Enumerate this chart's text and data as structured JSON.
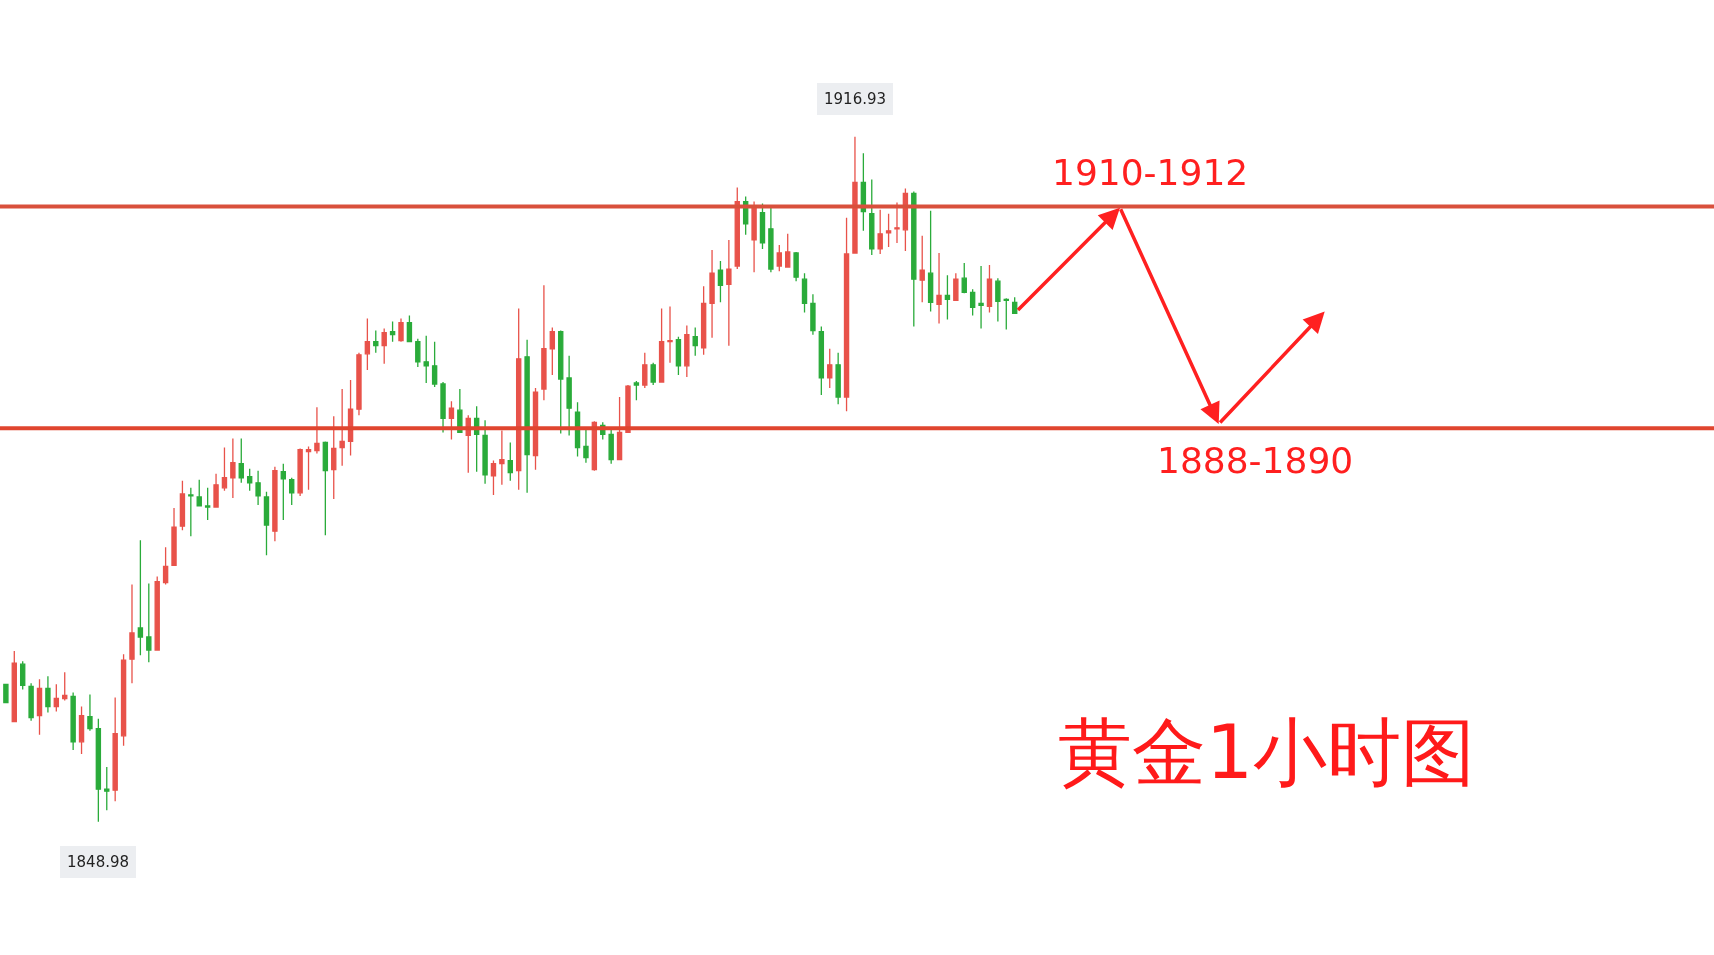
{
  "chart_data": {
    "type": "candlestick",
    "title": "黄金1小时图",
    "ylim": [
      1835.75,
      1930.5
    ],
    "ohlc": [
      [
        1862.6,
        1862.6,
        1860.8,
        1860.8
      ],
      [
        1858.9,
        1865.9,
        1858.9,
        1864.7
      ],
      [
        1864.6,
        1864.9,
        1862.1,
        1862.5
      ],
      [
        1862.4,
        1862.7,
        1859.0,
        1859.3
      ],
      [
        1859.5,
        1863.1,
        1857.6,
        1862.2
      ],
      [
        1862.2,
        1863.4,
        1859.8,
        1860.4
      ],
      [
        1860.4,
        1862.6,
        1859.9,
        1861.2
      ],
      [
        1861.2,
        1863.8,
        1861.0,
        1861.5
      ],
      [
        1861.4,
        1861.8,
        1856.1,
        1856.9
      ],
      [
        1856.9,
        1860.4,
        1855.7,
        1859.5
      ],
      [
        1859.4,
        1861.6,
        1858.0,
        1858.2
      ],
      [
        1858.2,
        1859.2,
        1848.98,
        1852.2
      ],
      [
        1852.2,
        1854.4,
        1850.1,
        1852.0
      ],
      [
        1852.1,
        1861.3,
        1851.0,
        1857.7
      ],
      [
        1857.5,
        1865.6,
        1856.5,
        1865.0
      ],
      [
        1865.1,
        1872.5,
        1862.7,
        1867.7
      ],
      [
        1868.2,
        1876.9,
        1865.5,
        1867.3
      ],
      [
        1867.3,
        1872.6,
        1864.8,
        1866.0
      ],
      [
        1866.0,
        1873.3,
        1866.0,
        1872.8
      ],
      [
        1872.7,
        1876.2,
        1872.5,
        1874.3
      ],
      [
        1874.4,
        1880.1,
        1874.4,
        1878.2
      ],
      [
        1878.3,
        1882.8,
        1877.9,
        1881.5
      ],
      [
        1881.4,
        1882.1,
        1877.3,
        1881.3
      ],
      [
        1881.2,
        1882.9,
        1880.3,
        1880.3
      ],
      [
        1880.3,
        1882.1,
        1878.9,
        1880.2
      ],
      [
        1880.2,
        1883.5,
        1880.2,
        1882.4
      ],
      [
        1882.1,
        1886.1,
        1881.8,
        1883.1
      ],
      [
        1883.1,
        1887.0,
        1881.1,
        1884.6
      ],
      [
        1884.5,
        1887.0,
        1882.6,
        1883.1
      ],
      [
        1883.2,
        1884.0,
        1881.8,
        1882.6
      ],
      [
        1882.6,
        1883.8,
        1880.4,
        1881.3
      ],
      [
        1881.2,
        1881.7,
        1875.4,
        1878.4
      ],
      [
        1877.8,
        1884.2,
        1876.8,
        1883.8
      ],
      [
        1883.7,
        1884.5,
        1878.9,
        1883.0
      ],
      [
        1882.9,
        1883.1,
        1880.4,
        1881.6
      ],
      [
        1881.6,
        1886.0,
        1881.3,
        1885.9
      ],
      [
        1885.7,
        1886.2,
        1881.9,
        1885.9
      ],
      [
        1885.8,
        1890.1,
        1885.5,
        1886.5
      ],
      [
        1886.6,
        1886.7,
        1877.4,
        1883.8
      ],
      [
        1883.9,
        1889.2,
        1881.0,
        1886.0
      ],
      [
        1886.1,
        1891.9,
        1884.3,
        1886.7
      ],
      [
        1886.7,
        1892.8,
        1885.3,
        1889.9
      ],
      [
        1889.9,
        1895.5,
        1889.3,
        1895.3
      ],
      [
        1895.4,
        1898.9,
        1893.8,
        1896.6
      ],
      [
        1896.6,
        1897.7,
        1895.5,
        1896.2
      ],
      [
        1896.2,
        1897.9,
        1894.4,
        1897.5
      ],
      [
        1897.6,
        1898.6,
        1896.6,
        1897.3
      ],
      [
        1896.7,
        1898.9,
        1896.6,
        1898.5
      ],
      [
        1898.5,
        1899.2,
        1896.6,
        1896.6
      ],
      [
        1896.6,
        1896.9,
        1894.1,
        1894.6
      ],
      [
        1894.6,
        1897.2,
        1892.5,
        1894.2
      ],
      [
        1894.2,
        1896.6,
        1892.1,
        1892.4
      ],
      [
        1892.4,
        1892.6,
        1887.6,
        1889.0
      ],
      [
        1889.0,
        1890.7,
        1886.9,
        1890.0
      ],
      [
        1889.8,
        1891.9,
        1887.6,
        1887.6
      ],
      [
        1887.3,
        1889.3,
        1883.6,
        1889.0
      ],
      [
        1889.0,
        1890.2,
        1883.7,
        1887.4
      ],
      [
        1887.3,
        1888.8,
        1882.5,
        1883.4
      ],
      [
        1883.3,
        1884.8,
        1881.4,
        1884.5
      ],
      [
        1884.5,
        1887.8,
        1882.4,
        1884.9
      ],
      [
        1884.8,
        1886.6,
        1882.8,
        1883.6
      ],
      [
        1883.8,
        1899.9,
        1881.9,
        1894.9
      ],
      [
        1895.1,
        1896.8,
        1881.6,
        1885.4
      ],
      [
        1885.3,
        1892.0,
        1883.9,
        1891.6
      ],
      [
        1891.9,
        1902.2,
        1890.8,
        1895.9
      ],
      [
        1895.9,
        1898.0,
        1893.3,
        1897.6
      ],
      [
        1897.6,
        1897.7,
        1887.5,
        1892.9
      ],
      [
        1893.0,
        1895.2,
        1887.3,
        1890.0
      ],
      [
        1889.6,
        1890.6,
        1885.2,
        1886.1
      ],
      [
        1886.2,
        1887.9,
        1884.6,
        1885.1
      ],
      [
        1883.9,
        1888.7,
        1883.8,
        1888.6
      ],
      [
        1888.3,
        1888.6,
        1886.9,
        1887.4
      ],
      [
        1887.4,
        1888.0,
        1884.5,
        1884.9
      ],
      [
        1884.9,
        1891.1,
        1884.9,
        1887.6
      ],
      [
        1887.6,
        1892.3,
        1887.6,
        1892.2
      ],
      [
        1892.5,
        1892.7,
        1890.8,
        1892.3
      ],
      [
        1892.3,
        1895.5,
        1892.0,
        1894.3
      ],
      [
        1894.3,
        1894.5,
        1892.3,
        1892.6
      ],
      [
        1892.6,
        1899.9,
        1892.6,
        1896.6
      ],
      [
        1896.6,
        1900.1,
        1894.5,
        1896.7
      ],
      [
        1896.8,
        1897.1,
        1893.3,
        1894.2
      ],
      [
        1894.2,
        1898.2,
        1893.1,
        1897.3
      ],
      [
        1897.1,
        1898.0,
        1895.2,
        1896.2
      ],
      [
        1896.0,
        1902.1,
        1895.3,
        1900.4
      ],
      [
        1900.4,
        1905.7,
        1897.0,
        1903.4
      ],
      [
        1903.7,
        1904.6,
        1900.5,
        1902.2
      ],
      [
        1902.3,
        1906.7,
        1896.2,
        1903.8
      ],
      [
        1904.1,
        1911.9,
        1903.8,
        1910.5
      ],
      [
        1910.5,
        1911.0,
        1907.2,
        1908.3
      ],
      [
        1906.7,
        1910.5,
        1903.5,
        1909.9
      ],
      [
        1909.4,
        1910.3,
        1905.8,
        1906.4
      ],
      [
        1907.8,
        1909.9,
        1903.5,
        1903.8
      ],
      [
        1904.1,
        1906.2,
        1903.6,
        1905.4
      ],
      [
        1904.0,
        1907.3,
        1904.0,
        1905.5
      ],
      [
        1905.4,
        1905.5,
        1902.6,
        1903.0
      ],
      [
        1902.8,
        1903.4,
        1899.5,
        1900.4
      ],
      [
        1900.4,
        1901.3,
        1897.3,
        1897.7
      ],
      [
        1897.6,
        1898.1,
        1891.3,
        1893.0
      ],
      [
        1893.0,
        1895.9,
        1892.0,
        1894.3
      ],
      [
        1894.3,
        1895.5,
        1890.4,
        1891.1
      ],
      [
        1891.1,
        1908.9,
        1889.7,
        1905.3
      ],
      [
        1905.4,
        1916.93,
        1905.4,
        1912.4
      ],
      [
        1912.4,
        1915.3,
        1907.6,
        1909.5
      ],
      [
        1909.3,
        1912.7,
        1905.2,
        1905.8
      ],
      [
        1905.8,
        1909.7,
        1905.3,
        1907.3
      ],
      [
        1907.4,
        1909.3,
        1906.0,
        1907.6
      ],
      [
        1907.8,
        1910.4,
        1906.4,
        1907.9
      ],
      [
        1907.7,
        1911.8,
        1905.6,
        1911.3
      ],
      [
        1911.3,
        1911.5,
        1898.1,
        1902.8
      ],
      [
        1902.7,
        1907.1,
        1900.5,
        1903.7
      ],
      [
        1903.4,
        1909.6,
        1899.6,
        1900.5
      ],
      [
        1900.3,
        1905.4,
        1898.4,
        1901.2
      ],
      [
        1901.2,
        1903.2,
        1898.8,
        1900.8
      ],
      [
        1900.7,
        1903.4,
        1900.7,
        1902.8
      ],
      [
        1902.9,
        1904.4,
        1901.4,
        1901.5
      ],
      [
        1901.5,
        1901.8,
        1899.2,
        1900.0
      ],
      [
        1900.4,
        1904.1,
        1897.9,
        1900.2
      ],
      [
        1900.1,
        1904.2,
        1899.5,
        1902.8
      ],
      [
        1902.6,
        1902.9,
        1898.6,
        1900.6
      ],
      [
        1900.8,
        1900.9,
        1897.8,
        1900.7
      ],
      [
        1900.5,
        1901.0,
        1899.4,
        1899.4
      ]
    ],
    "categories": [
      null,
      null,
      null,
      null,
      null,
      null,
      null,
      null,
      null,
      null,
      null,
      null,
      null,
      null,
      null,
      null,
      null,
      null,
      null,
      null,
      null,
      null,
      null,
      null,
      null,
      null,
      null,
      null,
      null,
      null,
      null,
      null,
      null,
      null,
      null,
      null,
      null,
      null,
      null,
      null,
      null,
      null,
      null,
      null,
      null,
      null,
      null,
      null,
      null,
      null,
      null,
      null,
      null,
      null,
      null,
      null,
      null,
      null,
      null,
      null,
      null,
      null,
      null,
      null,
      null,
      null,
      null,
      null,
      null,
      null,
      null,
      null,
      null,
      null,
      null,
      null,
      null,
      null,
      null,
      null,
      null,
      null,
      null,
      null,
      null,
      null,
      null,
      null,
      null,
      null,
      null,
      null,
      null,
      null,
      null,
      null,
      null,
      null,
      null,
      null,
      null,
      null,
      null,
      null,
      null,
      null,
      null,
      null,
      null,
      null,
      null,
      null,
      null,
      null,
      null,
      null,
      null,
      null,
      null,
      null,
      null
    ],
    "colors": [
      "#2aab3a",
      "#e8524a",
      "#2aab3a",
      "#2aab3a",
      "#e8524a",
      "#2aab3a",
      "#e8524a",
      "#e8524a",
      "#2aab3a",
      "#e8524a",
      "#2aab3a",
      "#2aab3a",
      "#2aab3a",
      "#e8524a",
      "#e8524a",
      "#e8524a",
      "#2aab3a",
      "#2aab3a",
      "#e8524a",
      "#e8524a",
      "#e8524a",
      "#e8524a",
      "#2aab3a",
      "#2aab3a",
      "#2aab3a",
      "#e8524a",
      "#e8524a",
      "#e8524a",
      "#2aab3a",
      "#2aab3a",
      "#2aab3a",
      "#2aab3a",
      "#e8524a",
      "#2aab3a",
      "#2aab3a",
      "#e8524a",
      "#e8524a",
      "#e8524a",
      "#2aab3a",
      "#e8524a",
      "#e8524a",
      "#e8524a",
      "#e8524a",
      "#e8524a",
      "#2aab3a",
      "#e8524a",
      "#2aab3a",
      "#e8524a",
      "#2aab3a",
      "#2aab3a",
      "#2aab3a",
      "#2aab3a",
      "#2aab3a",
      "#e8524a",
      "#2aab3a",
      "#e8524a",
      "#2aab3a",
      "#2aab3a",
      "#e8524a",
      "#e8524a",
      "#2aab3a",
      "#e8524a",
      "#2aab3a",
      "#e8524a",
      "#e8524a",
      "#e8524a",
      "#2aab3a",
      "#2aab3a",
      "#2aab3a",
      "#2aab3a",
      "#e8524a",
      "#2aab3a",
      "#2aab3a",
      "#e8524a",
      "#e8524a",
      "#2aab3a",
      "#e8524a",
      "#2aab3a",
      "#e8524a",
      "#e8524a",
      "#2aab3a",
      "#e8524a",
      "#2aab3a",
      "#e8524a",
      "#e8524a",
      "#2aab3a",
      "#e8524a",
      "#e8524a",
      "#2aab3a",
      "#e8524a",
      "#2aab3a",
      "#2aab3a",
      "#e8524a",
      "#e8524a",
      "#2aab3a",
      "#2aab3a",
      "#2aab3a",
      "#2aab3a",
      "#e8524a",
      "#2aab3a",
      "#e8524a",
      "#e8524a",
      "#2aab3a",
      "#2aab3a",
      "#e8524a",
      "#e8524a",
      "#e8524a",
      "#e8524a",
      "#2aab3a",
      "#e8524a",
      "#2aab3a",
      "#e8524a",
      "#2aab3a",
      "#e8524a",
      "#2aab3a",
      "#2aab3a",
      "#2aab3a",
      "#e8524a",
      "#2aab3a",
      "#2aab3a",
      "#2aab3a"
    ],
    "ref_lines": [
      {
        "axis": "y",
        "value": 1910,
        "label": "1910-1912",
        "color": "#d9503c"
      },
      {
        "axis": "y",
        "value": 1888,
        "label": "1888-1890",
        "color": "#e0452f"
      }
    ],
    "annotations": [
      {
        "text": "1916.93",
        "y": 1916.93
      },
      {
        "text": "1848.98",
        "y": 1848.98
      }
    ]
  }
}
